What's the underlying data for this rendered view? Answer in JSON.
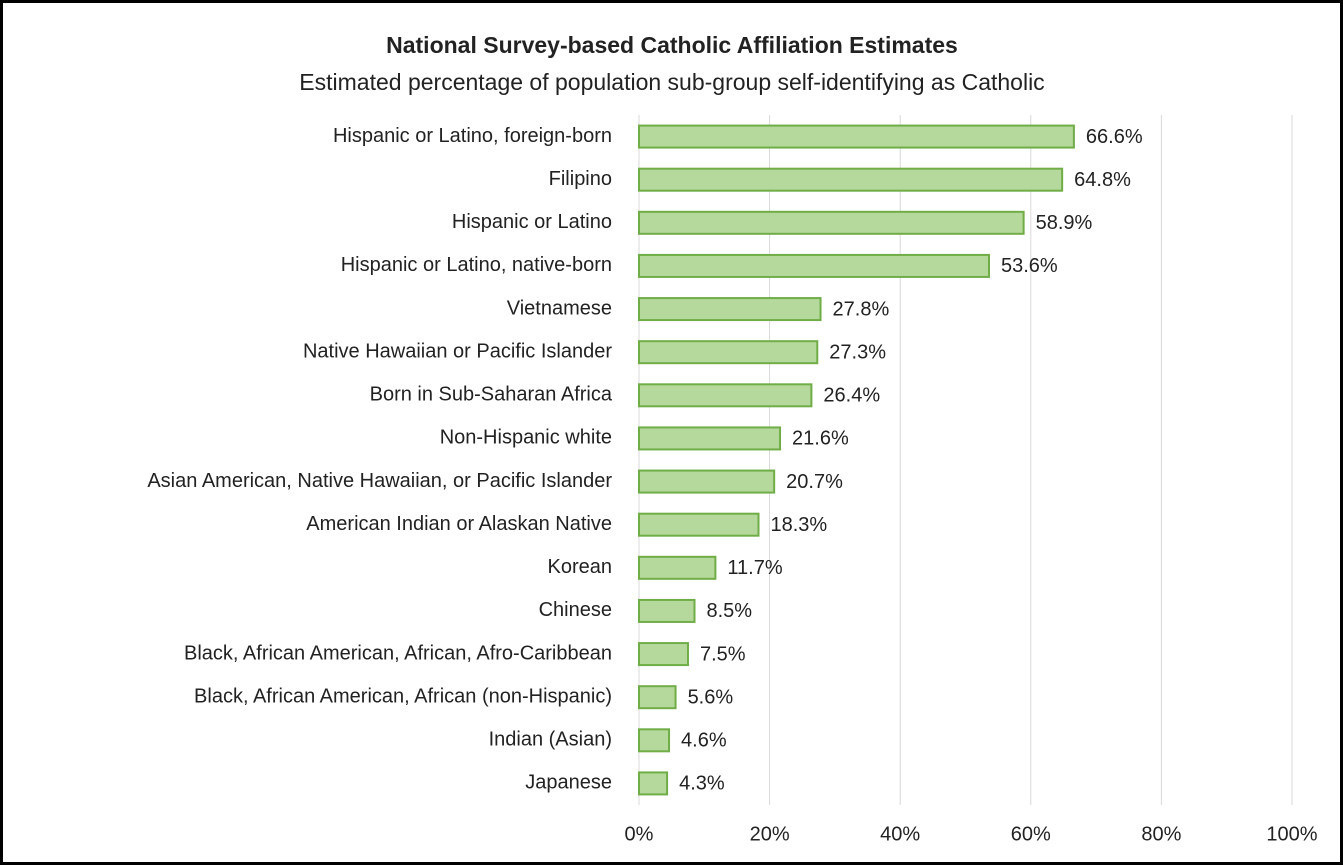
{
  "chart_data": {
    "type": "bar",
    "orientation": "horizontal",
    "title": "National Survey-based Catholic Affiliation Estimates",
    "subtitle": "Estimated percentage of population sub-group self-identifying as Catholic",
    "categories": [
      "Hispanic or Latino, foreign-born",
      "Filipino",
      "Hispanic or Latino",
      "Hispanic or Latino, native-born",
      "Vietnamese",
      "Native Hawaiian or Pacific Islander",
      "Born in Sub-Saharan Africa",
      "Non-Hispanic white",
      "Asian American, Native Hawaiian, or Pacific Islander",
      "American Indian or Alaskan Native",
      "Korean",
      "Chinese",
      "Black, African American, African, Afro-Caribbean",
      "Black, African American, African (non-Hispanic)",
      "Indian (Asian)",
      "Japanese"
    ],
    "values": [
      66.6,
      64.8,
      58.9,
      53.6,
      27.8,
      27.3,
      26.4,
      21.6,
      20.7,
      18.3,
      11.7,
      8.5,
      7.5,
      5.6,
      4.6,
      4.3
    ],
    "value_labels": [
      "66.6%",
      "64.8%",
      "58.9%",
      "53.6%",
      "27.8%",
      "27.3%",
      "26.4%",
      "21.6%",
      "20.7%",
      "18.3%",
      "11.7%",
      "8.5%",
      "7.5%",
      "5.6%",
      "4.6%",
      "4.3%"
    ],
    "color": "#b5d99c",
    "edge_color": "#70ad47",
    "xlim": [
      0,
      100
    ],
    "xticks": [
      {
        "value": 0,
        "label": "0%"
      },
      {
        "value": 20,
        "label": "20%"
      },
      {
        "value": 40,
        "label": "40%"
      },
      {
        "value": 60,
        "label": "60%"
      },
      {
        "value": 80,
        "label": "80%"
      },
      {
        "value": 100,
        "label": "100%"
      }
    ],
    "grid": true
  }
}
